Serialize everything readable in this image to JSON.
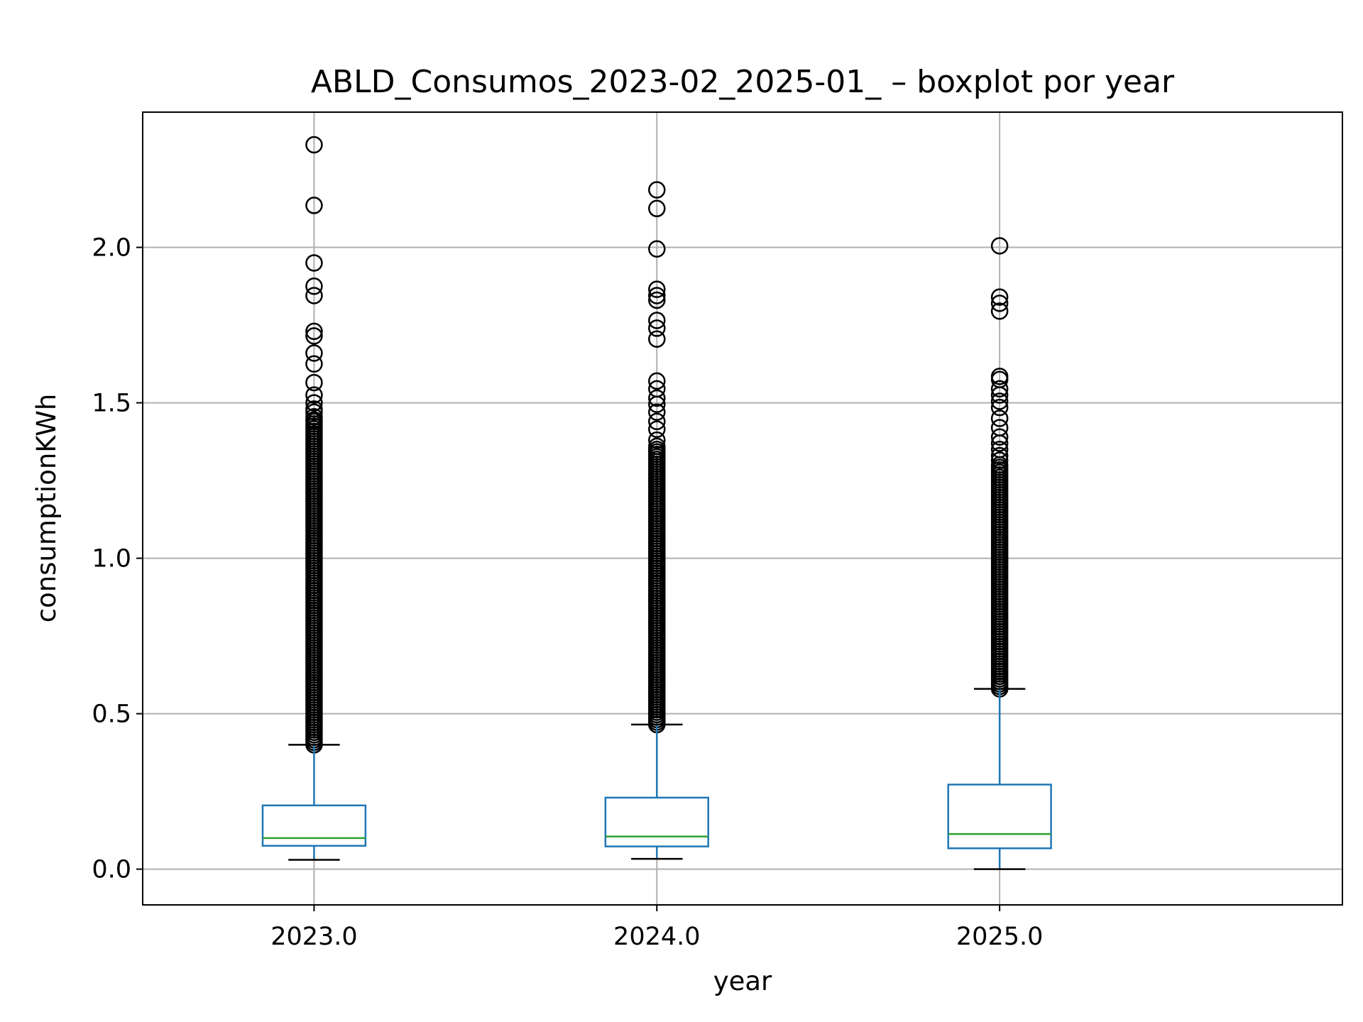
{
  "chart_data": {
    "type": "box",
    "title": "ABLD_Consumos_2023-02_2025-01_ – boxplot por year",
    "xlabel": "year",
    "ylabel": "consumptionKWh",
    "categories": [
      "2023.0",
      "2024.0",
      "2025.0"
    ],
    "y_ticks": [
      0.0,
      0.5,
      1.0,
      1.5,
      2.0
    ],
    "y_tick_labels": [
      "0.0",
      "0.5",
      "1.0",
      "1.5",
      "2.0"
    ],
    "ylim": [
      -0.115,
      2.435
    ],
    "grid": true,
    "colors": {
      "box": "#1f77b4",
      "median": "#2ca02c",
      "whisker_cap": "#000000",
      "flier": "#000000",
      "grid": "#b0b0b0"
    },
    "boxes": [
      {
        "category": "2023.0",
        "whisker_low": 0.03,
        "q1": 0.075,
        "median": 0.1,
        "q3": 0.205,
        "whisker_high": 0.4,
        "flier_range": [
          0.4,
          1.44
        ],
        "fliers": [
          2.33,
          2.135,
          1.95,
          1.875,
          1.845,
          1.73,
          1.715,
          1.66,
          1.625,
          1.565,
          1.525,
          1.5,
          1.48,
          1.47,
          1.455,
          1.445
        ]
      },
      {
        "category": "2024.0",
        "whisker_low": 0.033,
        "q1": 0.073,
        "median": 0.105,
        "q3": 0.23,
        "whisker_high": 0.465,
        "flier_range": [
          0.465,
          1.35
        ],
        "fliers": [
          2.185,
          2.125,
          1.995,
          1.865,
          1.845,
          1.83,
          1.765,
          1.74,
          1.705,
          1.57,
          1.545,
          1.515,
          1.495,
          1.47,
          1.44,
          1.415,
          1.38,
          1.36
        ]
      },
      {
        "category": "2025.0",
        "whisker_low": 0.0,
        "q1": 0.067,
        "median": 0.113,
        "q3": 0.272,
        "whisker_high": 0.58,
        "flier_range": [
          0.58,
          1.3
        ],
        "fliers": [
          2.005,
          1.84,
          1.82,
          1.795,
          1.585,
          1.575,
          1.545,
          1.525,
          1.505,
          1.485,
          1.45,
          1.42,
          1.39,
          1.37,
          1.35,
          1.33,
          1.315
        ]
      }
    ]
  }
}
